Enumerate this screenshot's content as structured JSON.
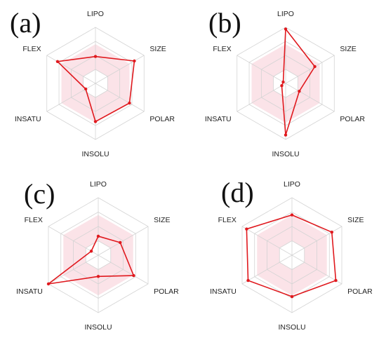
{
  "chart_data": [
    {
      "type": "radar",
      "panel_label": "(a)",
      "axes": [
        "LIPO",
        "SIZE",
        "POLAR",
        "INSOLU",
        "INSATU",
        "FLEX"
      ],
      "values": [
        0.48,
        0.8,
        0.7,
        0.68,
        0.2,
        0.78
      ],
      "ideal_band": {
        "inner": 0.25,
        "outer": 0.7
      },
      "color": "#e0191e",
      "band_color": "#fbe3e8"
    },
    {
      "type": "radar",
      "panel_label": "(b)",
      "axes": [
        "LIPO",
        "SIZE",
        "POLAR",
        "INSOLU",
        "INSATU",
        "FLEX"
      ],
      "values": [
        0.97,
        0.6,
        0.28,
        0.92,
        0.08,
        0.05
      ],
      "ideal_band": {
        "inner": 0.25,
        "outer": 0.7
      },
      "color": "#e0191e",
      "band_color": "#fbe3e8"
    },
    {
      "type": "radar",
      "panel_label": "(c)",
      "axes": [
        "LIPO",
        "SIZE",
        "POLAR",
        "INSOLU",
        "INSATU",
        "FLEX"
      ],
      "values": [
        0.33,
        0.44,
        0.71,
        0.37,
        1.0,
        0.14
      ],
      "ideal_band": {
        "inner": 0.25,
        "outer": 0.7
      },
      "color": "#e0191e",
      "band_color": "#fbe3e8"
    },
    {
      "type": "radar",
      "panel_label": "(d)",
      "axes": [
        "LIPO",
        "SIZE",
        "POLAR",
        "INSOLU",
        "INSATU",
        "FLEX"
      ],
      "values": [
        0.7,
        0.8,
        0.88,
        0.72,
        0.88,
        0.91
      ],
      "ideal_band": {
        "inner": 0.25,
        "outer": 0.7
      },
      "color": "#e0191e",
      "band_color": "#fbe3e8"
    }
  ]
}
